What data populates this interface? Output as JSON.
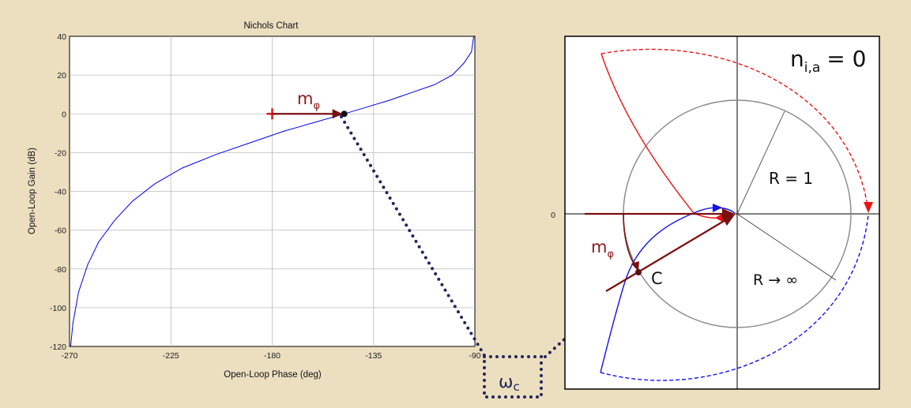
{
  "nichols": {
    "title": "Nichols Chart",
    "xlabel": "Open-Loop Phase (deg)",
    "ylabel": "Open-Loop Gain (dB)",
    "xlim": [
      -270,
      -90
    ],
    "ylim": [
      -120,
      40
    ],
    "x_ticks": [
      "-270",
      "-225",
      "-180",
      "-135",
      "-90"
    ],
    "y_ticks": [
      "40",
      "20",
      "0",
      "-20",
      "-40",
      "-60",
      "-80",
      "-100",
      "-120"
    ],
    "margin_label_main": "m",
    "margin_label_sub": "φ",
    "colors": {
      "curve": "#0000ee",
      "arrow": "#7a1010",
      "plus": "#dd1111"
    }
  },
  "chart_data": {
    "type": "line",
    "title": "Nichols Chart",
    "xlabel": "Open-Loop Phase (deg)",
    "ylabel": "Open-Loop Gain (dB)",
    "xlim": [
      -270,
      -90
    ],
    "ylim": [
      -120,
      40
    ],
    "grid": true,
    "series": [
      {
        "x": [
          -269.5,
          -268.5,
          -266,
          -262,
          -257,
          -250,
          -242,
          -232,
          -220,
          -205,
          -190,
          -175,
          -160,
          -148,
          -138,
          -128,
          -118,
          -108,
          -100,
          -95,
          -91.5,
          -90.5
        ],
        "y": [
          -120,
          -108,
          -92,
          -78,
          -66,
          -55,
          -45,
          -36,
          -28,
          -21,
          -15,
          -9,
          -4,
          0,
          3.5,
          7,
          11,
          15,
          20,
          26,
          32,
          40
        ]
      }
    ],
    "crossover_point": {
      "x": -148,
      "y": 0
    },
    "critical_point": {
      "x": -180,
      "y": 0
    }
  },
  "nyquist": {
    "zero_label": "0",
    "ni_main": "n",
    "ni_sub": "i,a",
    "ni_value": "= 0",
    "r1_label": "R = 1",
    "rinf_label": "R → ∞",
    "c_label": "C",
    "margin_label_main": "m",
    "margin_label_sub": "φ",
    "colors": {
      "red": "#ee1111",
      "blue": "#1111ee",
      "circle": "#888888",
      "arrow": "#7a1010"
    }
  },
  "omega": {
    "main": "ω",
    "sub": "c",
    "color": "#22265a"
  }
}
